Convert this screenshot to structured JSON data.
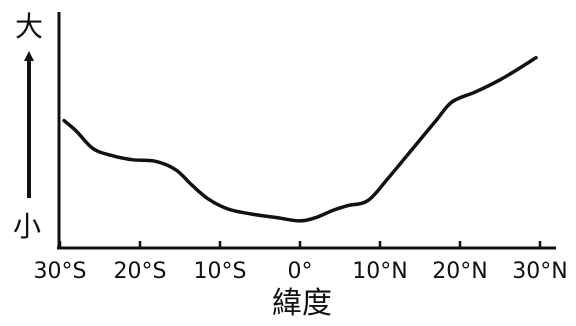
{
  "chart_data": {
    "type": "line",
    "xlabel": "緯度",
    "ylabel_high": "大",
    "ylabel_low": "小",
    "x_ticks": [
      "30°S",
      "20°S",
      "10°S",
      "0°",
      "10°N",
      "20°N",
      "30°N"
    ],
    "xlim": [
      -30,
      30
    ],
    "ylim": [
      0,
      10
    ],
    "grid": false,
    "series": [
      {
        "x": [
          -29.5,
          -28,
          -26,
          -24,
          -21,
          -18,
          -15.5,
          -13.5,
          -11.5,
          -9,
          -6,
          -3,
          0,
          2,
          4,
          6,
          8.5,
          11,
          14,
          17,
          19,
          22,
          25,
          27.5,
          29.5
        ],
        "values": [
          6.2,
          5.6,
          4.6,
          4.2,
          3.9,
          3.8,
          3.3,
          2.4,
          1.6,
          1.0,
          0.7,
          0.5,
          0.3,
          0.5,
          0.9,
          1.2,
          1.5,
          2.8,
          4.5,
          6.2,
          7.3,
          7.9,
          8.6,
          9.3,
          9.9
        ]
      }
    ]
  }
}
